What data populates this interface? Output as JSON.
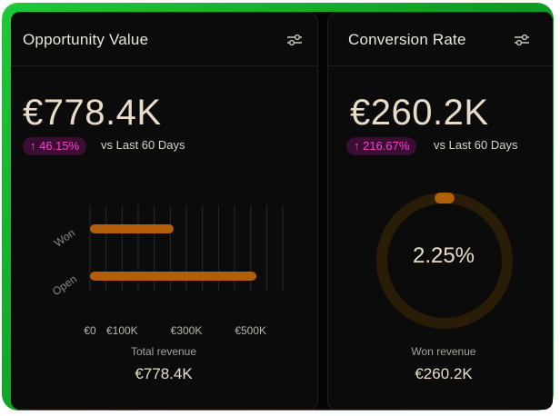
{
  "opportunity": {
    "title": "Opportunity Value",
    "value": "€778.4K",
    "change": "↑ 46.15%",
    "compare": "vs Last 60 Days",
    "footer_label": "Total revenue",
    "footer_value": "€778.4K",
    "chart_data": {
      "type": "bar",
      "orientation": "horizontal",
      "categories": [
        "Won",
        "Open"
      ],
      "values": [
        260.2,
        518.2
      ],
      "xticks": [
        "€0",
        "€100K",
        "€300K",
        "€500K"
      ],
      "xtick_values": [
        0,
        100,
        300,
        500
      ],
      "xlim": [
        0,
        600
      ],
      "color": "#b25d07"
    }
  },
  "conversion": {
    "title": "Conversion Rate",
    "value": "€260.2K",
    "change": "↑ 216.67%",
    "compare": "vs Last 60 Days",
    "gauge_value": "2.25%",
    "gauge_fraction": 0.0225,
    "footer_label": "Won revenue",
    "footer_value": "€260.2K"
  },
  "icons": {
    "filter": "sliders-icon"
  },
  "colors": {
    "accent_bar": "#b25d07",
    "badge_text": "#ff3fd0",
    "badge_bg": "#3a0d33",
    "frame_green": "#1fc83a"
  }
}
